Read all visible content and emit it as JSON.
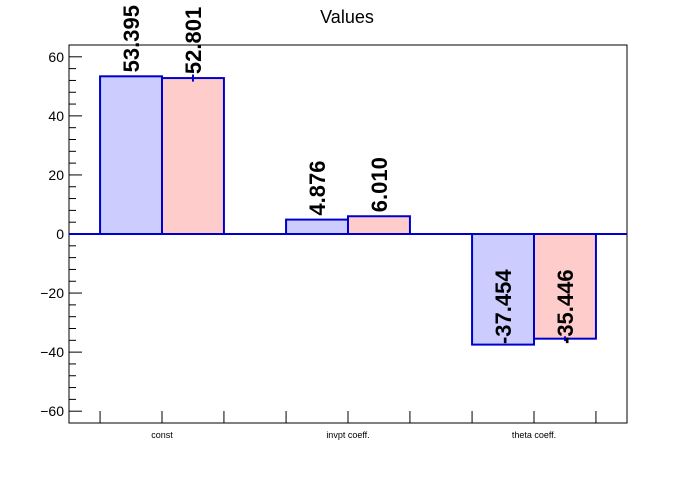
{
  "chart_data": {
    "type": "bar",
    "title": "Values",
    "xlabel": "",
    "ylabel": "",
    "categories": [
      "const",
      "invpt coeff.",
      "theta coeff."
    ],
    "series": [
      {
        "color": "#ccccff",
        "values": [
          53.395,
          4.876,
          -37.454
        ],
        "labels": [
          "53.395",
          "4.876",
          "-37.454"
        ],
        "errors": [
          0,
          0,
          0
        ]
      },
      {
        "color": "#ffcccc",
        "values": [
          52.801,
          6.01,
          -35.446
        ],
        "labels": [
          "52.801",
          "6.010",
          "-35.446"
        ],
        "errors": [
          1.2,
          0,
          0.8
        ]
      }
    ],
    "ylim": [
      -64,
      64
    ],
    "yticks": [
      -60,
      -40,
      -20,
      0,
      20,
      40,
      60
    ],
    "ytick_labels": [
      "−60",
      "−40",
      "−20",
      "0",
      "20",
      "40",
      "60"
    ],
    "edge_color": "#0000cc",
    "zero_line": true,
    "grid": false
  }
}
